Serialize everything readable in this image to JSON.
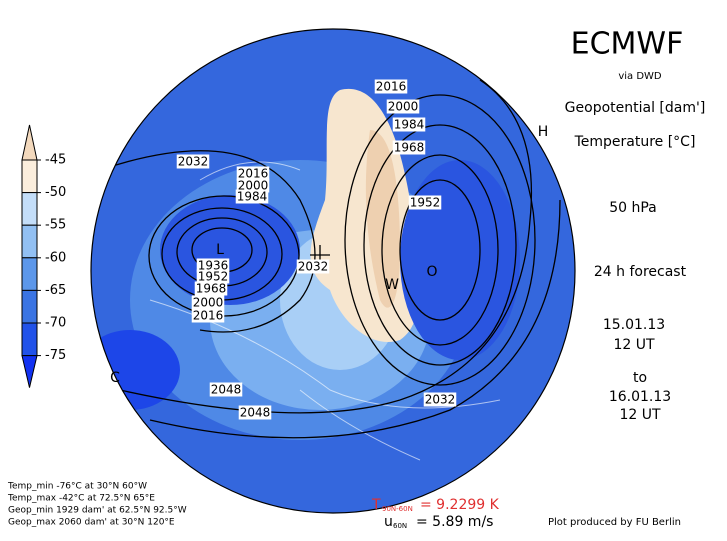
{
  "header": {
    "title": "ECMWF",
    "source": "via DWD",
    "field1": "Geopotential [dam']",
    "field2": "Temperature [°C]",
    "level": "50 hPa",
    "forecast": "24 h forecast",
    "init_date": "15.01.13",
    "init_time": "12 UT",
    "to": "to",
    "valid_date": "16.01.13",
    "valid_time": "12 UT"
  },
  "colorbar": {
    "ticks": [
      -45,
      -50,
      -55,
      -60,
      -65,
      -70,
      -75
    ],
    "colors": [
      "#f3d9bd",
      "#fbeedd",
      "#c4def9",
      "#92c0f3",
      "#5c97ea",
      "#3a74e3",
      "#2152e9",
      "#1232f2"
    ]
  },
  "map": {
    "contour_labels": [
      "2016",
      "2000",
      "1984",
      "1968",
      "1952",
      "2032",
      "2016",
      "2000",
      "1984",
      "1936",
      "1952",
      "1968",
      "2000",
      "2016",
      "2032",
      "2048",
      "2048",
      "2032"
    ],
    "markers": [
      "H",
      "L",
      "W",
      "O",
      "C"
    ]
  },
  "stats": {
    "lines": [
      "Temp_min -76°C at 30°N 60°W",
      "Temp_max -42°C at 72.5°N 65°E",
      "Geop_min 1929 dam' at 62.5°N 92.5°W",
      "Geop_max 2060 dam' at 30°N 120°E"
    ]
  },
  "footer": {
    "t_symbol": "T",
    "t_sub": "90N-60N",
    "t_value": "= 9.2299 K",
    "u_symbol": "u",
    "u_sub": "60N",
    "u_value": "= 5.89 m/s",
    "credit": "Plot produced by FU Berlin"
  }
}
